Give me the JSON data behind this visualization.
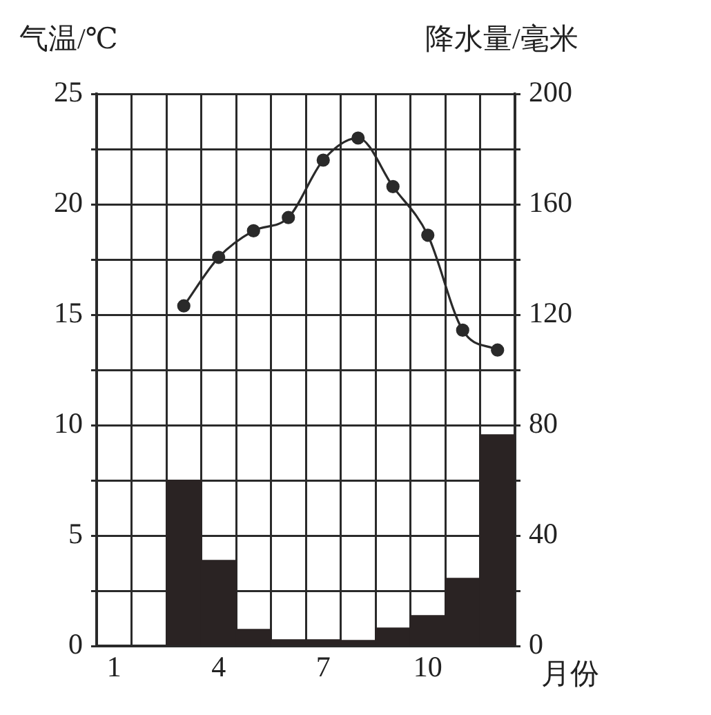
{
  "chart_data": {
    "type": "bar",
    "xlabel": "月份",
    "ylabel": "气温/℃",
    "y2label": "降水量/毫米",
    "categories": [
      "1",
      null,
      null,
      "4",
      null,
      null,
      "7",
      null,
      null,
      "10",
      null,
      null
    ],
    "series": [
      {
        "axis": "y2",
        "color": "#2a2323",
        "values": [
          null,
          null,
          60,
          31,
          6,
          2.3,
          2.3,
          2,
          6.5,
          11,
          24.5,
          76.5
        ]
      },
      {
        "type": "line",
        "axis": "y",
        "color": "#2a2a2a",
        "marker": "circle",
        "line_style": "solid",
        "values": [
          null,
          null,
          15.4,
          17.6,
          18.8,
          19.4,
          22.0,
          23.0,
          20.8,
          18.6,
          14.3,
          13.4
        ]
      }
    ],
    "ylim": [
      0,
      25
    ],
    "yticks": [
      0,
      {
        "value": 2.5,
        "label": null
      },
      5,
      {
        "value": 7.5,
        "label": null
      },
      10,
      {
        "value": 12.5,
        "label": null
      },
      15,
      {
        "value": 17.5,
        "label": null
      },
      20,
      {
        "value": 22.5,
        "label": null
      },
      25
    ],
    "y2lim": [
      0,
      200
    ],
    "y2ticks": [
      0,
      {
        "value": 20,
        "label": null
      },
      40,
      {
        "value": 60,
        "label": null
      },
      80,
      {
        "value": 100,
        "label": null
      },
      120,
      {
        "value": 140,
        "label": null
      },
      160,
      {
        "value": 180,
        "label": null
      },
      200
    ],
    "grid": true,
    "legend": false
  }
}
